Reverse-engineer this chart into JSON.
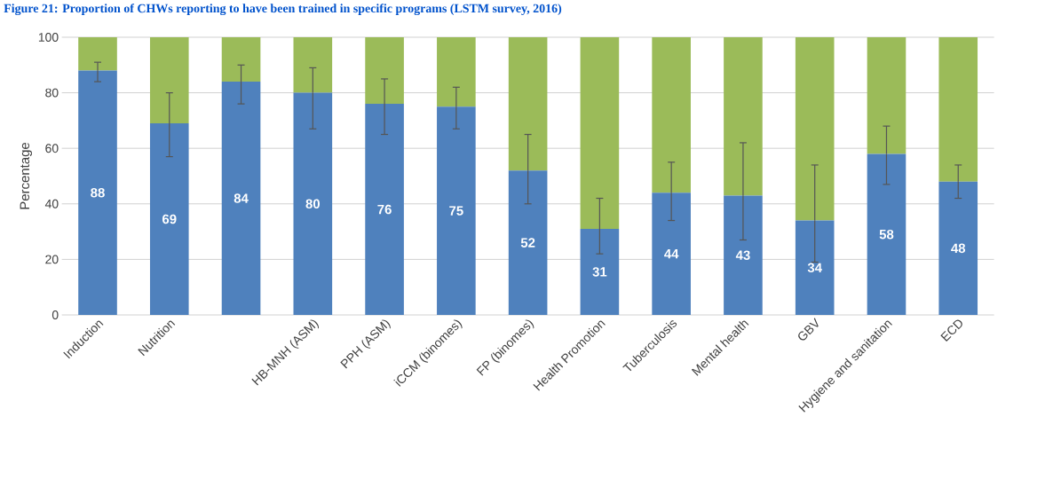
{
  "chart_data": {
    "type": "bar",
    "title": "Figure 21: Proportion of CHWs reporting to have been trained in specific programs (LSTM survey, 2016)",
    "ylabel": "Percentage",
    "categories": [
      "Induction",
      "Nutrition",
      null,
      "HB-MNH (ASM)",
      "PPH (ASM)",
      "iCCM (binomes)",
      "FP (binomes)",
      "Health Promotion",
      "Tuberculosis",
      "Mental health",
      "GBV",
      "Hygiene and sanitation",
      "ECD"
    ],
    "stacked": true,
    "series": [
      {
        "color": "#4f81bd",
        "values": [
          88,
          69,
          84,
          80,
          76,
          75,
          52,
          31,
          44,
          43,
          34,
          58,
          48
        ],
        "value_labels": [
          "88",
          "69",
          "84",
          "80",
          "76",
          "75",
          "52",
          "31",
          "44",
          "43",
          "34",
          "58",
          "48"
        ],
        "errors": [
          [
            84,
            91
          ],
          [
            57,
            80
          ],
          [
            76,
            90
          ],
          [
            67,
            89
          ],
          [
            65,
            85
          ],
          [
            67,
            82
          ],
          [
            40,
            65
          ],
          [
            22,
            42
          ],
          [
            34,
            55
          ],
          [
            27,
            62
          ],
          [
            19,
            54
          ],
          [
            47,
            68
          ],
          [
            42,
            54
          ]
        ]
      },
      {
        "color": "#9bbb59",
        "values": [
          12,
          31,
          16,
          20,
          24,
          25,
          48,
          69,
          56,
          57,
          66,
          42,
          52
        ]
      }
    ],
    "ylim": [
      0,
      100
    ],
    "yticks": [
      0,
      20,
      40,
      60,
      80,
      100
    ],
    "grid": "y"
  }
}
